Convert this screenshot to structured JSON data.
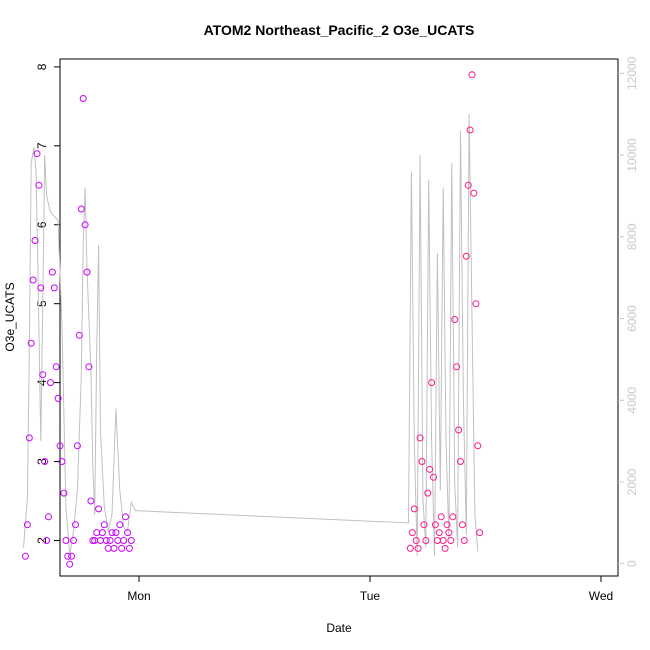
{
  "chart_data": {
    "type": "scatter",
    "title": "ATOM2 Northeast_Pacific_2 O3e_UCATS",
    "xlabel": "Date",
    "ylabel": "O3e_UCATS",
    "x_ticks": [
      "Mon",
      "Tue",
      "Wed"
    ],
    "y_ticks": [
      "2",
      "3",
      "4",
      "5",
      "6",
      "7",
      "8"
    ],
    "y_ticks_right": [
      "0",
      "2000",
      "4000",
      "6000",
      "8000",
      "10000",
      "12000"
    ],
    "ylim": [
      1.55,
      8.1
    ],
    "ylim_right": [
      -300,
      12350
    ],
    "xlim_hours": [
      -16,
      36
    ],
    "grid": false,
    "colors": {
      "points_low": "#cc00ff",
      "points_high": "#ff1a8c",
      "altitude_line": "#c0c0c0",
      "right_axis": "#c8c8c8"
    },
    "series": [
      {
        "kind": "points",
        "note_x": "hours relative to Mon 00:00",
        "x": [
          -11.8,
          -11.6,
          -11.4,
          -11.2,
          -11.0,
          -10.8,
          -10.6,
          -10.4,
          -10.2,
          -10.0,
          -9.8,
          -9.6,
          -9.4,
          -9.2,
          -9.0,
          -8.8,
          -8.6,
          -8.4,
          -8.2,
          -8.0,
          -7.8,
          -7.6,
          -7.4,
          -7.2,
          -7.0,
          -6.8,
          -6.6,
          -6.4,
          -6.2,
          -6.0,
          -5.8,
          -5.6,
          -5.4,
          -5.2,
          -5.0,
          -4.8,
          -4.6,
          -4.4,
          -4.2,
          -4.0,
          -3.8,
          -3.6,
          -3.4,
          -3.2,
          -3.0,
          -2.8,
          -2.6,
          -2.4,
          -2.2,
          -2.0,
          -1.8,
          -1.6,
          -1.4,
          -1.2,
          -1.0,
          -0.8,
          28.2,
          28.4,
          28.6,
          28.8,
          29.0,
          29.2,
          29.4,
          29.6,
          29.8,
          30.0,
          30.2,
          30.4,
          30.6,
          30.8,
          31.0,
          31.2,
          31.4,
          31.6,
          31.8,
          32.0,
          32.2,
          32.4,
          32.6,
          32.8,
          33.0,
          33.2,
          33.4,
          33.6,
          33.8,
          34.0,
          34.2,
          34.4,
          34.6,
          34.8,
          35.0,
          35.2,
          35.4
        ],
        "y": [
          1.8,
          2.2,
          3.3,
          4.5,
          5.3,
          5.8,
          6.9,
          6.5,
          5.2,
          4.1,
          3.0,
          2.0,
          2.3,
          4.0,
          5.4,
          5.2,
          4.2,
          3.8,
          3.2,
          3.0,
          2.6,
          2.0,
          1.8,
          1.7,
          1.8,
          2.0,
          2.2,
          3.2,
          4.6,
          6.2,
          7.6,
          6.0,
          5.4,
          4.2,
          2.5,
          2.0,
          2.0,
          2.1,
          2.4,
          2.0,
          2.1,
          2.2,
          2.0,
          1.9,
          2.0,
          2.1,
          1.9,
          2.1,
          2.0,
          2.2,
          1.9,
          2.0,
          2.3,
          2.1,
          1.9,
          2.0,
          1.9,
          2.1,
          2.4,
          2.0,
          1.9,
          3.3,
          3.0,
          2.2,
          2.0,
          2.6,
          2.9,
          4.0,
          2.8,
          2.2,
          2.0,
          2.1,
          2.3,
          2.0,
          1.9,
          2.2,
          2.1,
          2.0,
          2.3,
          4.8,
          4.2,
          3.4,
          3.0,
          2.2,
          2.0,
          5.6,
          6.5,
          7.2,
          7.9,
          6.4,
          5.0,
          3.2,
          2.1
        ]
      },
      {
        "kind": "line",
        "x": [
          -12,
          -11.6,
          -11.4,
          -11.2,
          -10.9,
          -10.7,
          -10.5,
          -10.2,
          -10.0,
          -9.8,
          -9.6,
          -9.2,
          -8.8,
          -8.4,
          -8.0,
          -7.6,
          -7.2,
          -6.8,
          -6.4,
          -6.0,
          -5.8,
          -5.6,
          -5.4,
          -5.0,
          -4.8,
          -4.6,
          -4.4,
          -4.2,
          -4.0,
          -3.6,
          -3.2,
          -2.8,
          -2.4,
          -2.0,
          -1.6,
          -1.2,
          -0.8,
          -0.4,
          28.0,
          28.3,
          28.6,
          28.9,
          29.2,
          29.5,
          29.8,
          30.1,
          30.4,
          30.7,
          31.0,
          31.3,
          31.6,
          31.9,
          32.2,
          32.5,
          32.8,
          33.1,
          33.4,
          33.7,
          34.0,
          34.3,
          34.6,
          34.9,
          35.2
        ],
        "y": [
          400,
          1600,
          5200,
          9800,
          10200,
          9600,
          7200,
          3000,
          6400,
          10000,
          9000,
          8600,
          8500,
          8400,
          5800,
          1400,
          200,
          800,
          1800,
          4600,
          7800,
          9200,
          7200,
          4800,
          2400,
          1200,
          5200,
          7800,
          3200,
          1400,
          800,
          1200,
          3800,
          1800,
          900,
          800,
          1500,
          1300,
          1000,
          9600,
          3000,
          200,
          10000,
          1600,
          400,
          9400,
          3000,
          200,
          7600,
          1800,
          9200,
          3000,
          600,
          9800,
          2000,
          400,
          10600,
          4000,
          700,
          11000,
          6000,
          1200,
          300
        ]
      }
    ]
  }
}
